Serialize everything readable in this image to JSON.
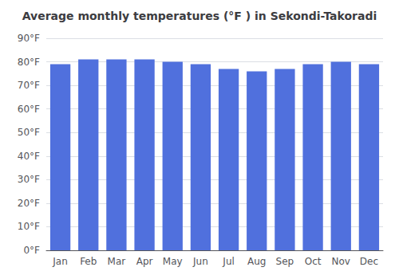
{
  "chart_data": {
    "type": "bar",
    "title": "Average monthly temperatures (°F ) in Sekondi-Takoradi",
    "categories": [
      "Jan",
      "Feb",
      "Mar",
      "Apr",
      "May",
      "Jun",
      "Jul",
      "Aug",
      "Sep",
      "Oct",
      "Nov",
      "Dec"
    ],
    "values": [
      79,
      81,
      81,
      81,
      80,
      79,
      77,
      76,
      77,
      79,
      80,
      79
    ],
    "ylim": [
      0,
      90
    ],
    "yticks": [
      {
        "value": 0,
        "label": "0°F"
      },
      {
        "value": 10,
        "label": "10°F"
      },
      {
        "value": 20,
        "label": "20°F"
      },
      {
        "value": 30,
        "label": "30°F"
      },
      {
        "value": 40,
        "label": "40°F"
      },
      {
        "value": 50,
        "label": "50°F"
      },
      {
        "value": 60,
        "label": "60°F"
      },
      {
        "value": 70,
        "label": "70°F"
      },
      {
        "value": 80,
        "label": "80°F"
      },
      {
        "value": 90,
        "label": "90°F"
      }
    ],
    "grid": true
  }
}
